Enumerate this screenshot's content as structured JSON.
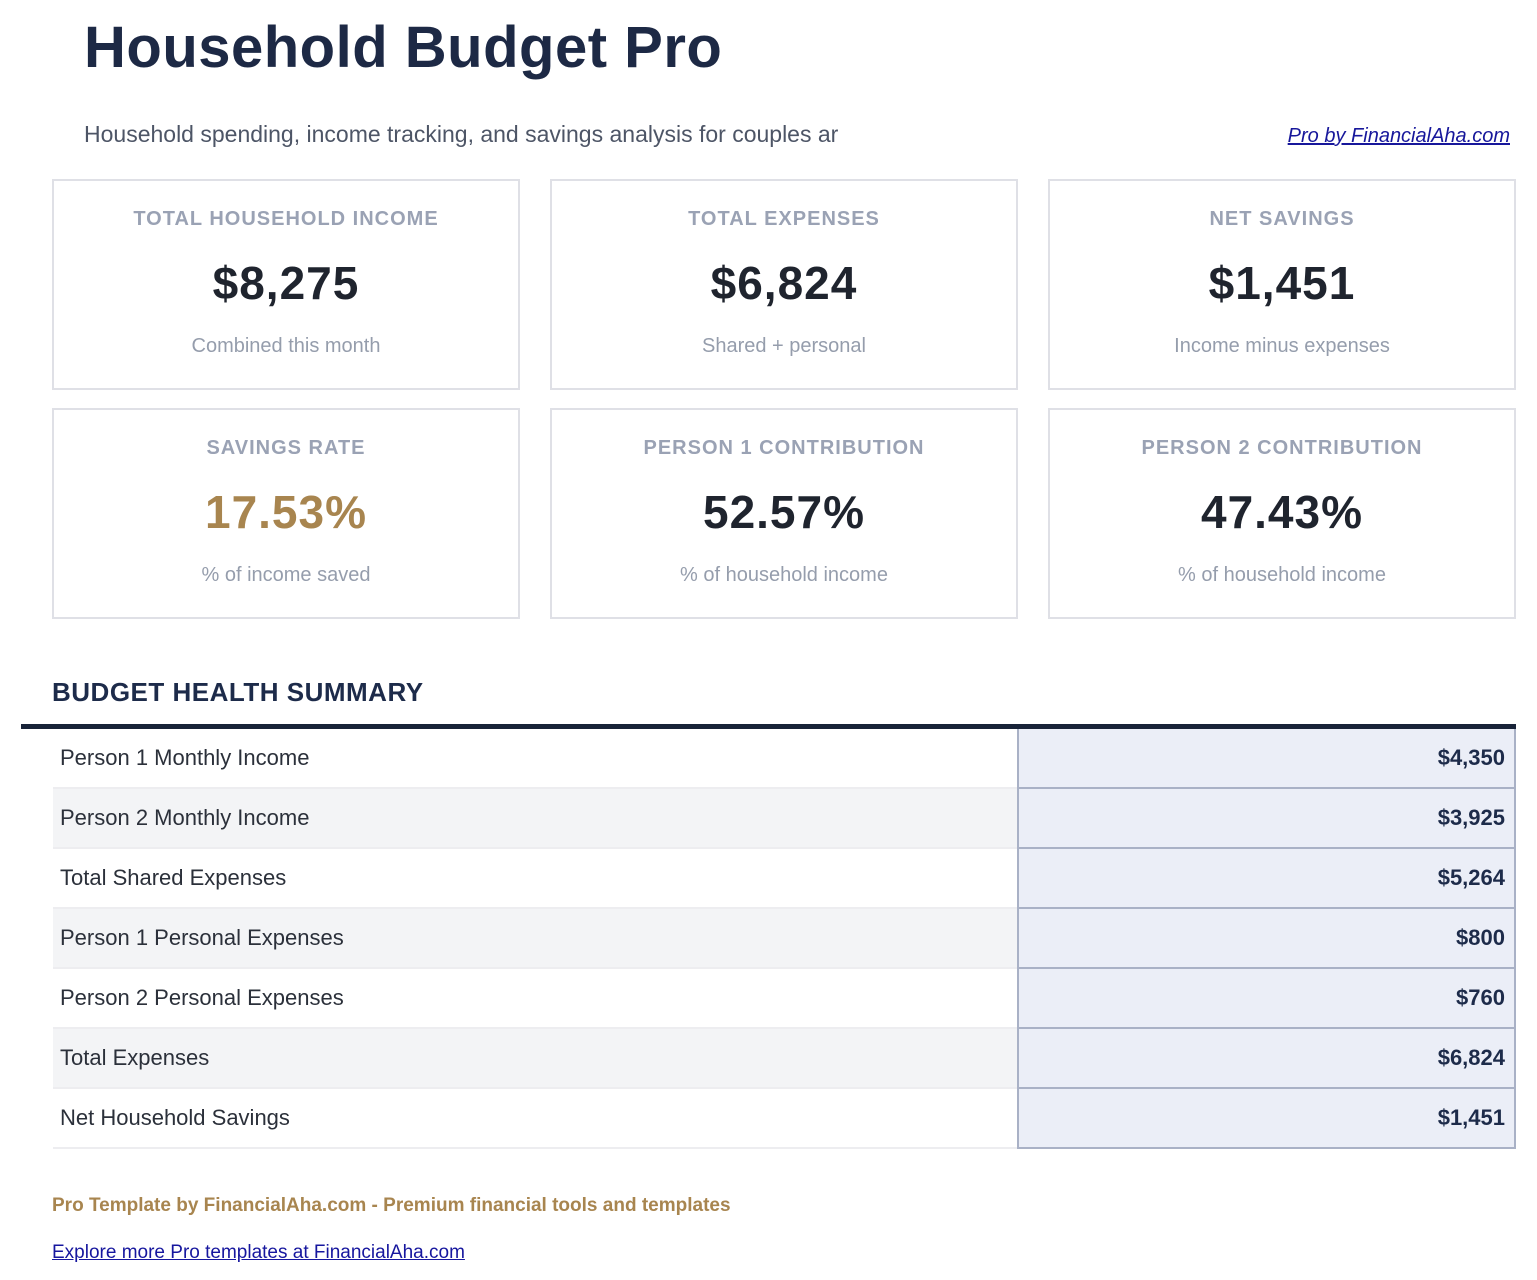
{
  "header": {
    "title": "Household Budget Pro",
    "subtitle": "Household spending, income tracking, and savings analysis for couples ar",
    "link_label": "Pro by FinancialAha.com"
  },
  "cards": [
    {
      "label": "TOTAL HOUSEHOLD INCOME",
      "value": "$8,275",
      "sub": "Combined this month"
    },
    {
      "label": "TOTAL EXPENSES",
      "value": "$6,824",
      "sub": "Shared + personal"
    },
    {
      "label": "NET SAVINGS",
      "value": "$1,451",
      "sub": "Income minus expenses"
    },
    {
      "label": "SAVINGS RATE",
      "value": "17.53%",
      "sub": "% of income saved"
    },
    {
      "label": "PERSON 1 CONTRIBUTION",
      "value": "52.57%",
      "sub": "% of household income"
    },
    {
      "label": "PERSON 2 CONTRIBUTION",
      "value": "47.43%",
      "sub": "% of household income"
    }
  ],
  "summary": {
    "heading": "BUDGET HEALTH SUMMARY",
    "rows": [
      {
        "label": "Person 1 Monthly Income",
        "value": "$4,350"
      },
      {
        "label": "Person 2 Monthly Income",
        "value": "$3,925"
      },
      {
        "label": "Total Shared Expenses",
        "value": "$5,264"
      },
      {
        "label": "Person 1 Personal Expenses",
        "value": "$800"
      },
      {
        "label": "Person 2 Personal Expenses",
        "value": "$760"
      },
      {
        "label": "Total Expenses",
        "value": "$6,824"
      },
      {
        "label": "Net Household Savings",
        "value": "$1,451"
      }
    ]
  },
  "footer": {
    "tagline": "Pro Template by FinancialAha.com - Premium financial tools and templates",
    "link_label": "Explore more Pro templates at FinancialAha.com"
  },
  "colors": {
    "navy": "#1d2b4a",
    "accent_gold": "#a8854f",
    "link_blue": "#16169e",
    "value_cell_bg": "#ebeef7",
    "value_cell_border": "#a9b1c6",
    "alt_row_bg": "#f3f4f6",
    "card_border": "#dfe0e6",
    "muted_label": "#9aa2b4"
  }
}
